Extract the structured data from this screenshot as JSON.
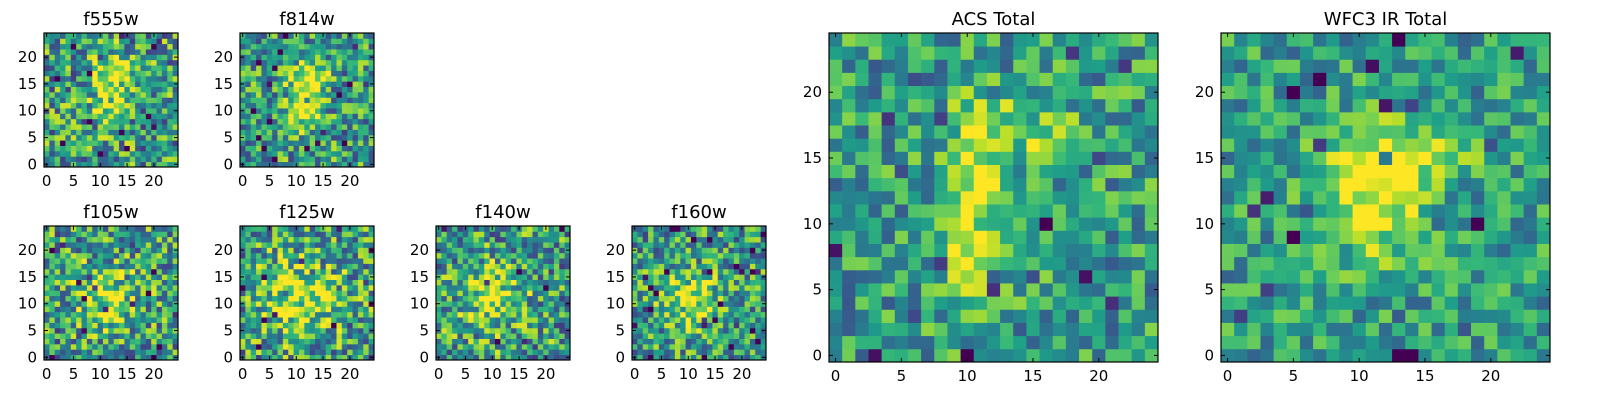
{
  "chart_data": [
    {
      "type": "heatmap",
      "title": "f555w",
      "seed": 11,
      "blob": [
        {
          "x": 12,
          "y": 14,
          "sx": 2.2,
          "sy": 5,
          "a": 0.35
        },
        {
          "x": 15,
          "y": 17,
          "sx": 2,
          "sy": 1.5,
          "a": 0.25
        }
      ],
      "noise": 0.55,
      "xlim": [
        -0.5,
        24.5
      ],
      "ylim": [
        -0.5,
        24.5
      ],
      "xticks": [
        0,
        5,
        10,
        15,
        20
      ],
      "yticks": [
        0,
        5,
        10,
        15,
        20
      ]
    },
    {
      "type": "heatmap",
      "title": "f814w",
      "seed": 23,
      "blob": [
        {
          "x": 11,
          "y": 12,
          "sx": 2.5,
          "sy": 4,
          "a": 0.45
        },
        {
          "x": 13,
          "y": 17,
          "sx": 2,
          "sy": 1.5,
          "a": 0.3
        }
      ],
      "noise": 0.5,
      "xlim": [
        -0.5,
        24.5
      ],
      "ylim": [
        -0.5,
        24.5
      ],
      "xticks": [
        0,
        5,
        10,
        15,
        20
      ],
      "yticks": [
        0,
        5,
        10,
        15,
        20
      ]
    },
    {
      "type": "heatmap",
      "title": "f105w",
      "seed": 37,
      "blob": [
        {
          "x": 11,
          "y": 11,
          "sx": 4,
          "sy": 4,
          "a": 0.35
        }
      ],
      "noise": 0.55,
      "xlim": [
        -0.5,
        24.5
      ],
      "ylim": [
        -0.5,
        24.5
      ],
      "xticks": [
        0,
        5,
        10,
        15,
        20
      ],
      "yticks": [
        0,
        5,
        10,
        15,
        20
      ]
    },
    {
      "type": "heatmap",
      "title": "f125w",
      "seed": 41,
      "blob": [
        {
          "x": 11,
          "y": 11,
          "sx": 5,
          "sy": 5,
          "a": 0.35
        }
      ],
      "noise": 0.55,
      "xlim": [
        -0.5,
        24.5
      ],
      "ylim": [
        -0.5,
        24.5
      ],
      "xticks": [
        0,
        5,
        10,
        15,
        20
      ],
      "yticks": [
        0,
        5,
        10,
        15,
        20
      ]
    },
    {
      "type": "heatmap",
      "title": "f140w",
      "seed": 53,
      "blob": [
        {
          "x": 10,
          "y": 11,
          "sx": 4,
          "sy": 4,
          "a": 0.35
        }
      ],
      "noise": 0.55,
      "xlim": [
        -0.5,
        24.5
      ],
      "ylim": [
        -0.5,
        24.5
      ],
      "xticks": [
        0,
        5,
        10,
        15,
        20
      ],
      "yticks": [
        0,
        5,
        10,
        15,
        20
      ]
    },
    {
      "type": "heatmap",
      "title": "f160w",
      "seed": 67,
      "blob": [
        {
          "x": 10,
          "y": 11,
          "sx": 3.5,
          "sy": 3.5,
          "a": 0.45
        }
      ],
      "noise": 0.5,
      "xlim": [
        -0.5,
        24.5
      ],
      "ylim": [
        -0.5,
        24.5
      ],
      "xticks": [
        0,
        5,
        10,
        15,
        20
      ],
      "yticks": [
        0,
        5,
        10,
        15,
        20
      ]
    },
    {
      "type": "heatmap",
      "title": "ACS Total",
      "seed": 79,
      "blob": [
        {
          "x": 10.5,
          "y": 11,
          "sx": 1.5,
          "sy": 4.5,
          "a": 0.5
        },
        {
          "x": 14,
          "y": 17,
          "sx": 3,
          "sy": 1.5,
          "a": 0.3
        }
      ],
      "noise": 0.4,
      "xlim": [
        -0.5,
        24.5
      ],
      "ylim": [
        -0.5,
        24.5
      ],
      "xticks": [
        0,
        5,
        10,
        15,
        20
      ],
      "yticks": [
        0,
        5,
        10,
        15,
        20
      ]
    },
    {
      "type": "heatmap",
      "title": "WFC3 IR Total",
      "seed": 97,
      "blob": [
        {
          "x": 11,
          "y": 12,
          "sx": 3,
          "sy": 3,
          "a": 0.5
        },
        {
          "x": 15,
          "y": 16,
          "sx": 3,
          "sy": 1.5,
          "a": 0.25
        }
      ],
      "noise": 0.35,
      "xlim": [
        -0.5,
        24.5
      ],
      "ylim": [
        -0.5,
        24.5
      ],
      "xticks": [
        0,
        5,
        10,
        15,
        20
      ],
      "yticks": [
        0,
        5,
        10,
        15,
        20
      ]
    }
  ],
  "colormap": "viridis"
}
